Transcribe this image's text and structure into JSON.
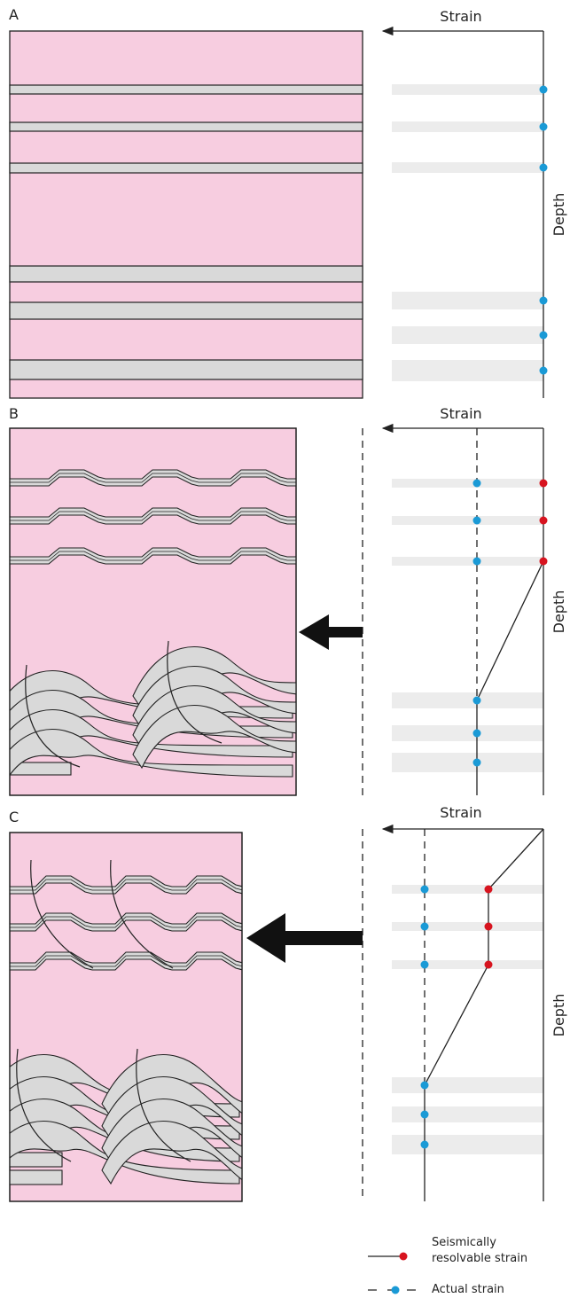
{
  "panels": [
    {
      "label": "A",
      "axis_x": "Strain",
      "axis_y": "Depth"
    },
    {
      "label": "B",
      "axis_x": "Strain",
      "axis_y": "Depth"
    },
    {
      "label": "C",
      "axis_x": "Strain",
      "axis_y": "Depth"
    }
  ],
  "legend": [
    {
      "label": "Seismically resolvable strain"
    },
    {
      "label": "Actual strain"
    }
  ]
}
